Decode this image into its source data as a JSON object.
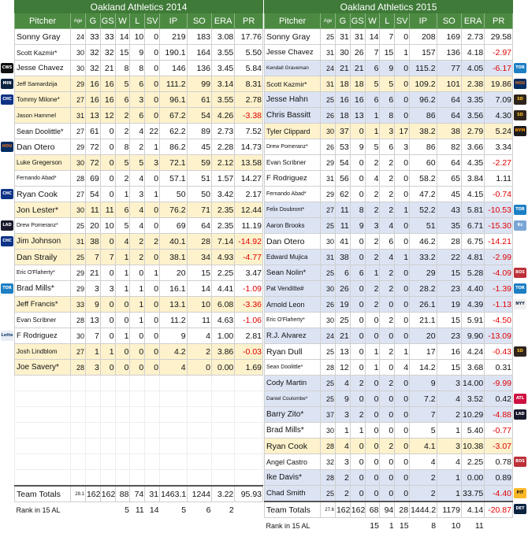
{
  "left": {
    "title": "Oakland Athletics 2014",
    "headers": [
      "Pitcher",
      "Age",
      "G",
      "GS",
      "W",
      "L",
      "SV",
      "IP",
      "SO",
      "ERA",
      "PR"
    ],
    "rows": [
      {
        "name": "Sonny Gray",
        "age": "24",
        "g": "33",
        "gs": "33",
        "w": "14",
        "l": "10",
        "sv": "0",
        "ip": "219",
        "so": "183",
        "era": "3.08",
        "pr": "17.76",
        "hl": "",
        "fs": "10.5px"
      },
      {
        "name": "Scott Kazmir*",
        "age": "30",
        "g": "32",
        "gs": "32",
        "w": "15",
        "l": "9",
        "sv": "0",
        "ip": "190.1",
        "so": "164",
        "era": "3.55",
        "pr": "5.50",
        "hl": "",
        "fs": "8.5px"
      },
      {
        "name": "Jesse Chavez",
        "age": "30",
        "g": "32",
        "gs": "21",
        "w": "8",
        "l": "8",
        "sv": "0",
        "ip": "146",
        "so": "136",
        "era": "3.45",
        "pr": "5.84",
        "hl": "",
        "fs": "9.5px"
      },
      {
        "name": "Jeff Samardzija",
        "age": "29",
        "g": "16",
        "gs": "16",
        "w": "5",
        "l": "6",
        "sv": "0",
        "ip": "111.2",
        "so": "99",
        "era": "3.14",
        "pr": "8.31",
        "hl": "y",
        "fs": "7.5px"
      },
      {
        "name": "Tommy Milone*",
        "age": "27",
        "g": "16",
        "gs": "16",
        "w": "6",
        "l": "3",
        "sv": "0",
        "ip": "96.1",
        "so": "61",
        "era": "3.55",
        "pr": "2.78",
        "hl": "y",
        "fs": "8px"
      },
      {
        "name": "Jason Hammel",
        "age": "31",
        "g": "13",
        "gs": "12",
        "w": "2",
        "l": "6",
        "sv": "0",
        "ip": "67.2",
        "so": "54",
        "era": "4.26",
        "pr": "-3.38",
        "hl": "y",
        "fs": "7.5px"
      },
      {
        "name": "Sean Doolittle*",
        "age": "27",
        "g": "61",
        "gs": "0",
        "w": "2",
        "l": "4",
        "sv": "22",
        "ip": "62.2",
        "so": "89",
        "era": "2.73",
        "pr": "7.52",
        "hl": "",
        "fs": "9px"
      },
      {
        "name": "Dan Otero",
        "age": "29",
        "g": "72",
        "gs": "0",
        "w": "8",
        "l": "2",
        "sv": "1",
        "ip": "86.2",
        "so": "45",
        "era": "2.28",
        "pr": "14.73",
        "hl": "",
        "fs": "10.5px"
      },
      {
        "name": "Luke Gregerson",
        "age": "30",
        "g": "72",
        "gs": "0",
        "w": "5",
        "l": "5",
        "sv": "3",
        "ip": "72.1",
        "so": "59",
        "era": "2.12",
        "pr": "13.58",
        "hl": "y",
        "fs": "8px"
      },
      {
        "name": "Fernando Abad*",
        "age": "28",
        "g": "69",
        "gs": "0",
        "w": "2",
        "l": "4",
        "sv": "0",
        "ip": "57.1",
        "so": "51",
        "era": "1.57",
        "pr": "14.27",
        "hl": "",
        "fs": "7px"
      },
      {
        "name": "Ryan Cook",
        "age": "27",
        "g": "54",
        "gs": "0",
        "w": "1",
        "l": "3",
        "sv": "1",
        "ip": "50",
        "so": "50",
        "era": "3.42",
        "pr": "2.17",
        "hl": "",
        "fs": "10.5px"
      },
      {
        "name": "Jon Lester*",
        "age": "30",
        "g": "11",
        "gs": "11",
        "w": "6",
        "l": "4",
        "sv": "0",
        "ip": "76.2",
        "so": "71",
        "era": "2.35",
        "pr": "12.44",
        "hl": "y",
        "fs": "10.5px"
      },
      {
        "name": "Drew Pomeranz*",
        "age": "25",
        "g": "20",
        "gs": "10",
        "w": "5",
        "l": "4",
        "sv": "0",
        "ip": "69",
        "so": "64",
        "era": "2.35",
        "pr": "11.19",
        "hl": "",
        "fs": "7px"
      },
      {
        "name": "Jim Johnson",
        "age": "31",
        "g": "38",
        "gs": "0",
        "w": "4",
        "l": "2",
        "sv": "2",
        "ip": "40.1",
        "so": "28",
        "era": "7.14",
        "pr": "-14.92",
        "hl": "y",
        "fs": "10px"
      },
      {
        "name": "Dan Straily",
        "age": "25",
        "g": "7",
        "gs": "7",
        "w": "1",
        "l": "2",
        "sv": "0",
        "ip": "38.1",
        "so": "34",
        "era": "4.93",
        "pr": "-4.77",
        "hl": "y",
        "fs": "10.5px"
      },
      {
        "name": "Eric O'Flaherty*",
        "age": "29",
        "g": "21",
        "gs": "0",
        "w": "1",
        "l": "0",
        "sv": "1",
        "ip": "20",
        "so": "15",
        "era": "2.25",
        "pr": "3.47",
        "hl": "",
        "fs": "7px"
      },
      {
        "name": "Brad Mills*",
        "age": "29",
        "g": "3",
        "gs": "3",
        "w": "1",
        "l": "1",
        "sv": "0",
        "ip": "16.1",
        "so": "14",
        "era": "4.41",
        "pr": "-1.09",
        "hl": "",
        "fs": "10px"
      },
      {
        "name": "Jeff Francis*",
        "age": "33",
        "g": "9",
        "gs": "0",
        "w": "0",
        "l": "1",
        "sv": "0",
        "ip": "13.1",
        "so": "10",
        "era": "6.08",
        "pr": "-3.36",
        "hl": "y",
        "fs": "9.5px"
      },
      {
        "name": "Evan Scribner",
        "age": "28",
        "g": "13",
        "gs": "0",
        "w": "0",
        "l": "1",
        "sv": "0",
        "ip": "11.2",
        "so": "11",
        "era": "4.63",
        "pr": "-1.06",
        "hl": "",
        "fs": "8px"
      },
      {
        "name": "F Rodriguez",
        "age": "30",
        "g": "7",
        "gs": "0",
        "w": "1",
        "l": "0",
        "sv": "0",
        "ip": "9",
        "so": "4",
        "era": "1.00",
        "pr": "2.81",
        "hl": "",
        "fs": "9.5px"
      },
      {
        "name": "Josh Lindblom",
        "age": "27",
        "g": "1",
        "gs": "1",
        "w": "0",
        "l": "0",
        "sv": "0",
        "ip": "4.2",
        "so": "2",
        "era": "3.86",
        "pr": "-0.03",
        "hl": "y",
        "fs": "8px"
      },
      {
        "name": "Joe Savery*",
        "age": "28",
        "g": "3",
        "gs": "0",
        "w": "0",
        "l": "0",
        "sv": "0",
        "ip": "4",
        "so": "0",
        "era": "0.00",
        "pr": "1.69",
        "hl": "y",
        "fs": "10px"
      }
    ],
    "totals": {
      "name": "Team Totals",
      "age": "28.1",
      "g": "162",
      "gs": "162",
      "w": "88",
      "l": "74",
      "sv": "31",
      "ip": "1463.1",
      "so": "1244",
      "era": "3.22",
      "pr": "95.93"
    },
    "rank": {
      "name": "Rank in 15 AL",
      "g": "",
      "gs": "",
      "w": "5",
      "l": "11",
      "sv": "14",
      "ip": "5",
      "so": "6",
      "era": "2",
      "pr": ""
    }
  },
  "right": {
    "title": "Oakland Athletics 2015",
    "headers": [
      "Pitcher",
      "Age",
      "G",
      "GS",
      "W",
      "L",
      "SV",
      "IP",
      "SO",
      "ERA",
      "PR"
    ],
    "rows": [
      {
        "name": "Sonny Gray",
        "age": "25",
        "g": "31",
        "gs": "31",
        "w": "14",
        "l": "7",
        "sv": "0",
        "ip": "208",
        "so": "169",
        "era": "2.73",
        "pr": "29.58",
        "hl": "",
        "fs": "10.5px"
      },
      {
        "name": "Jesse Chavez",
        "age": "31",
        "g": "30",
        "gs": "26",
        "w": "7",
        "l": "15",
        "sv": "1",
        "ip": "157",
        "so": "136",
        "era": "4.18",
        "pr": "-2.97",
        "hl": "",
        "fs": "9.5px"
      },
      {
        "name": "Kendall Graveman",
        "age": "24",
        "g": "21",
        "gs": "21",
        "w": "6",
        "l": "9",
        "sv": "0",
        "ip": "115.2",
        "so": "77",
        "era": "4.05",
        "pr": "-6.17",
        "hl": "b",
        "fs": "6.5px"
      },
      {
        "name": "Scott Kazmir*",
        "age": "31",
        "g": "18",
        "gs": "18",
        "w": "5",
        "l": "5",
        "sv": "0",
        "ip": "109.2",
        "so": "101",
        "era": "2.38",
        "pr": "19.86",
        "hl": "y",
        "fs": "8.5px"
      },
      {
        "name": "Jesse Hahn",
        "age": "25",
        "g": "16",
        "gs": "16",
        "w": "6",
        "l": "6",
        "sv": "0",
        "ip": "96.2",
        "so": "64",
        "era": "3.35",
        "pr": "7.09",
        "hl": "b",
        "fs": "10px"
      },
      {
        "name": "Chris Bassitt",
        "age": "26",
        "g": "18",
        "gs": "13",
        "w": "1",
        "l": "8",
        "sv": "0",
        "ip": "86",
        "so": "64",
        "era": "3.56",
        "pr": "4.30",
        "hl": "b",
        "fs": "10px"
      },
      {
        "name": "Tyler Clippard",
        "age": "30",
        "g": "37",
        "gs": "0",
        "w": "1",
        "l": "3",
        "sv": "17",
        "ip": "38.2",
        "so": "38",
        "era": "2.79",
        "pr": "5.24",
        "hl": "y",
        "fs": "9px"
      },
      {
        "name": "Drew Pomeranz*",
        "age": "26",
        "g": "53",
        "gs": "9",
        "w": "5",
        "l": "6",
        "sv": "3",
        "ip": "86",
        "so": "82",
        "era": "3.66",
        "pr": "3.34",
        "hl": "",
        "fs": "7px"
      },
      {
        "name": "Evan Scribner",
        "age": "29",
        "g": "54",
        "gs": "0",
        "w": "2",
        "l": "2",
        "sv": "0",
        "ip": "60",
        "so": "64",
        "era": "4.35",
        "pr": "-2.27",
        "hl": "",
        "fs": "8px"
      },
      {
        "name": "F Rodriguez",
        "age": "31",
        "g": "56",
        "gs": "0",
        "w": "4",
        "l": "2",
        "sv": "0",
        "ip": "58.2",
        "so": "65",
        "era": "3.84",
        "pr": "1.11",
        "hl": "",
        "fs": "9.5px"
      },
      {
        "name": "Fernando Abad*",
        "age": "29",
        "g": "62",
        "gs": "0",
        "w": "2",
        "l": "2",
        "sv": "0",
        "ip": "47.2",
        "so": "45",
        "era": "4.15",
        "pr": "-0.74",
        "hl": "",
        "fs": "7px"
      },
      {
        "name": "Felix Doubront*",
        "age": "27",
        "g": "11",
        "gs": "8",
        "w": "2",
        "l": "2",
        "sv": "1",
        "ip": "52.2",
        "so": "43",
        "era": "5.81",
        "pr": "-10.53",
        "hl": "b",
        "fs": "7px"
      },
      {
        "name": "Aaron Brooks",
        "age": "25",
        "g": "11",
        "gs": "9",
        "w": "3",
        "l": "4",
        "sv": "0",
        "ip": "51",
        "so": "35",
        "era": "6.71",
        "pr": "-15.30",
        "hl": "b",
        "fs": "8px"
      },
      {
        "name": "Dan Otero",
        "age": "30",
        "g": "41",
        "gs": "0",
        "w": "2",
        "l": "6",
        "sv": "0",
        "ip": "46.2",
        "so": "28",
        "era": "6.75",
        "pr": "-14.21",
        "hl": "",
        "fs": "10.5px"
      },
      {
        "name": "Edward Mujica",
        "age": "31",
        "g": "38",
        "gs": "0",
        "w": "2",
        "l": "4",
        "sv": "1",
        "ip": "33.2",
        "so": "22",
        "era": "4.81",
        "pr": "-2.99",
        "hl": "b",
        "fs": "8px"
      },
      {
        "name": "Sean Nolin*",
        "age": "25",
        "g": "6",
        "gs": "6",
        "w": "1",
        "l": "2",
        "sv": "0",
        "ip": "29",
        "so": "15",
        "era": "5.28",
        "pr": "-4.09",
        "hl": "b",
        "fs": "9.5px"
      },
      {
        "name": "Pat Venditte#",
        "age": "30",
        "g": "26",
        "gs": "0",
        "w": "2",
        "l": "2",
        "sv": "0",
        "ip": "28.2",
        "so": "23",
        "era": "4.40",
        "pr": "-1.39",
        "hl": "b",
        "fs": "8px"
      },
      {
        "name": "Arnold Leon",
        "age": "26",
        "g": "19",
        "gs": "0",
        "w": "2",
        "l": "0",
        "sv": "0",
        "ip": "26.1",
        "so": "19",
        "era": "4.39",
        "pr": "-1.13",
        "hl": "b",
        "fs": "9px"
      },
      {
        "name": "Eric O'Flaherty*",
        "age": "30",
        "g": "25",
        "gs": "0",
        "w": "0",
        "l": "2",
        "sv": "0",
        "ip": "21.1",
        "so": "15",
        "era": "5.91",
        "pr": "-4.50",
        "hl": "",
        "fs": "7px"
      },
      {
        "name": "R.J. Alvarez",
        "age": "24",
        "g": "21",
        "gs": "0",
        "w": "0",
        "l": "0",
        "sv": "0",
        "ip": "20",
        "so": "23",
        "era": "9.90",
        "pr": "-13.09",
        "hl": "b",
        "fs": "9.5px"
      },
      {
        "name": "Ryan Dull",
        "age": "25",
        "g": "13",
        "gs": "0",
        "w": "1",
        "l": "2",
        "sv": "1",
        "ip": "17",
        "so": "16",
        "era": "4.24",
        "pr": "-0.43",
        "hl": "",
        "fs": "10.5px"
      },
      {
        "name": "Sean Doolittle*",
        "age": "28",
        "g": "12",
        "gs": "0",
        "w": "1",
        "l": "0",
        "sv": "4",
        "ip": "14.2",
        "so": "15",
        "era": "3.68",
        "pr": "0.31",
        "hl": "",
        "fs": "7px"
      },
      {
        "name": "Cody Martin",
        "age": "25",
        "g": "4",
        "gs": "2",
        "w": "0",
        "l": "2",
        "sv": "0",
        "ip": "9",
        "so": "3",
        "era": "14.00",
        "pr": "-9.99",
        "hl": "b",
        "fs": "9.5px"
      },
      {
        "name": "Daniel Coulombe*",
        "age": "25",
        "g": "9",
        "gs": "0",
        "w": "0",
        "l": "0",
        "sv": "0",
        "ip": "7.2",
        "so": "4",
        "era": "3.52",
        "pr": "0.42",
        "hl": "b",
        "fs": "6.5px"
      },
      {
        "name": "Barry Zito*",
        "age": "37",
        "g": "3",
        "gs": "2",
        "w": "0",
        "l": "0",
        "sv": "0",
        "ip": "7",
        "so": "2",
        "era": "10.29",
        "pr": "-4.88",
        "hl": "b",
        "fs": "10px"
      },
      {
        "name": "Brad Mills*",
        "age": "30",
        "g": "1",
        "gs": "1",
        "w": "0",
        "l": "0",
        "sv": "0",
        "ip": "5",
        "so": "1",
        "era": "5.40",
        "pr": "-0.77",
        "hl": "",
        "fs": "10px"
      },
      {
        "name": "Ryan Cook",
        "age": "28",
        "g": "4",
        "gs": "0",
        "w": "0",
        "l": "2",
        "sv": "0",
        "ip": "4.1",
        "so": "3",
        "era": "10.38",
        "pr": "-3.07",
        "hl": "y",
        "fs": "10.5px"
      },
      {
        "name": "Angel Castro",
        "age": "32",
        "g": "3",
        "gs": "0",
        "w": "0",
        "l": "0",
        "sv": "0",
        "ip": "4",
        "so": "4",
        "era": "2.25",
        "pr": "0.78",
        "hl": "",
        "fs": "9px"
      },
      {
        "name": "Ike Davis*",
        "age": "28",
        "g": "2",
        "gs": "0",
        "w": "0",
        "l": "0",
        "sv": "0",
        "ip": "2",
        "so": "1",
        "era": "0.00",
        "pr": "0.89",
        "hl": "b",
        "fs": "10px"
      },
      {
        "name": "Chad Smith",
        "age": "25",
        "g": "2",
        "gs": "0",
        "w": "0",
        "l": "0",
        "sv": "0",
        "ip": "2",
        "so": "1",
        "era": "33.75",
        "pr": "-4.40",
        "hl": "b",
        "fs": "9.5px"
      }
    ],
    "totals": {
      "name": "Team Totals",
      "age": "27.6",
      "g": "162",
      "gs": "162",
      "w": "68",
      "l": "94",
      "sv": "28",
      "ip": "1444.2",
      "so": "1179",
      "era": "4.14",
      "pr": "-20.87"
    },
    "rank": {
      "name": "Rank in 15 AL",
      "g": "",
      "gs": "",
      "w": "15",
      "l": "1",
      "sv": "15",
      "ip": "8",
      "so": "10",
      "era": "11",
      "pr": ""
    }
  },
  "left_badges": [
    {
      "row": 3,
      "text": "CWS",
      "bg": "#111111",
      "fg": "#ffffff"
    },
    {
      "row": 4,
      "text": "MIN",
      "bg": "#0c2340",
      "fg": "#ffffff"
    },
    {
      "row": 5,
      "text": "CHC",
      "bg": "#0e3386",
      "fg": "#ffffff"
    },
    {
      "row": 8,
      "text": "HOU",
      "bg": "#002d62",
      "fg": "#eb6e1f"
    },
    {
      "row": 11,
      "text": "CHC",
      "bg": "#0e3386",
      "fg": "#ffffff"
    },
    {
      "row": 13,
      "text": "LAD",
      "bg": "#1a1a2e",
      "fg": "#ffffff"
    },
    {
      "row": 14,
      "text": "CHC",
      "bg": "#0e3386",
      "fg": "#ffffff"
    },
    {
      "row": 17,
      "text": "TOR",
      "bg": "#1d7fc4",
      "fg": "#ffffff"
    },
    {
      "row": 20,
      "text": "Lotte",
      "bg": "#e8eef5",
      "fg": "#1a3c6e"
    }
  ],
  "right_badges": [
    {
      "row": 3,
      "text": "TOR",
      "bg": "#1d7fc4",
      "fg": "#ffffff"
    },
    {
      "row": 4,
      "text": "HOU",
      "bg": "#002d62",
      "fg": "#eb6e1f"
    },
    {
      "row": 5,
      "text": "SD",
      "bg": "#2f241d",
      "fg": "#ffc425"
    },
    {
      "row": 6,
      "text": "SD",
      "bg": "#2f241d",
      "fg": "#ffc425"
    },
    {
      "row": 7,
      "text": "NYM",
      "bg": "#1c1c1c",
      "fg": "#ff9500"
    },
    {
      "row": 12,
      "text": "TOR",
      "bg": "#1d7fc4",
      "fg": "#ffffff"
    },
    {
      "row": 13,
      "text": "Kc",
      "bg": "#7aa6d6",
      "fg": "#ffffff"
    },
    {
      "row": 16,
      "text": "BOS",
      "bg": "#bd3039",
      "fg": "#ffffff"
    },
    {
      "row": 17,
      "text": "TOR",
      "bg": "#1d7fc4",
      "fg": "#ffffff"
    },
    {
      "row": 18,
      "text": "NYY",
      "bg": "#f0f0f0",
      "fg": "#0c2340"
    },
    {
      "row": 21,
      "text": "SD",
      "bg": "#2f241d",
      "fg": "#ffc425"
    },
    {
      "row": 24,
      "text": "ATL",
      "bg": "#ce1141",
      "fg": "#ffffff"
    },
    {
      "row": 25,
      "text": "LAD",
      "bg": "#1a1a2e",
      "fg": "#ffffff"
    },
    {
      "row": 28,
      "text": "BOS",
      "bg": "#bd3039",
      "fg": "#ffffff"
    },
    {
      "row": 30,
      "text": "PIT",
      "bg": "#fdb827",
      "fg": "#111111"
    },
    {
      "row": 31,
      "text": "DET",
      "bg": "#0c2340",
      "fg": "#ffffff"
    }
  ]
}
